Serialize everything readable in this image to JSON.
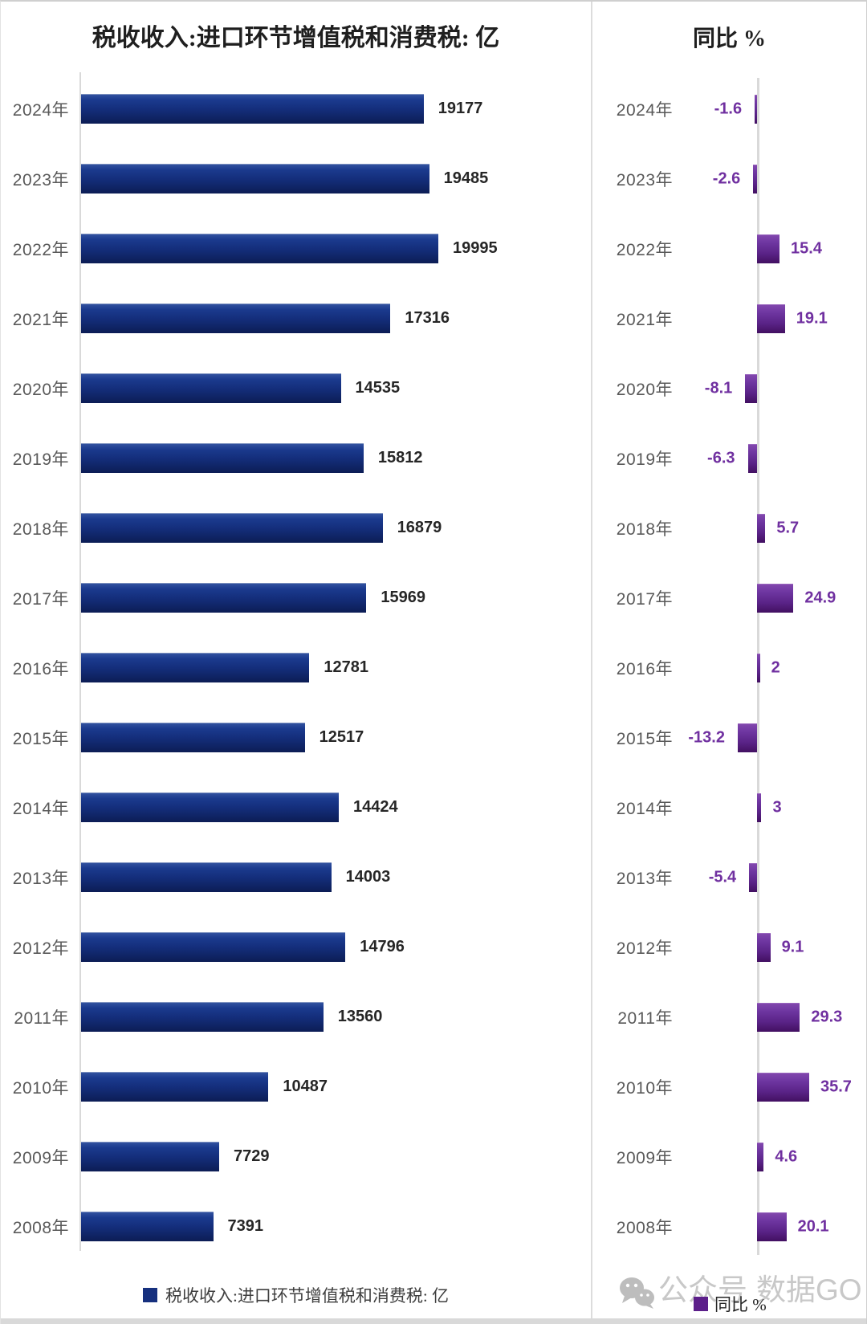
{
  "left_title": "税收收入:进口环节增值税和消费税: 亿",
  "right_title": "同比 %",
  "left_legend": "税收收入:进口环节增值税和消费税: 亿",
  "right_legend": "同比 %",
  "watermark": {
    "icon": "wechat-icon",
    "text_left": "公众号",
    "text_right": "数据GO"
  },
  "colors": {
    "navy_bar_top": "#31519f",
    "navy_bar_bottom": "#0c1d55",
    "purple_bar_top": "#8147ad",
    "purple_bar_bottom": "#421061",
    "left_value_label": "#262626",
    "right_value_label": "#7030a0",
    "year_label": "#595959",
    "axis_line": "#d9d9d9",
    "legend_navy_swatch": "#16307e",
    "legend_purple_swatch": "#5c1f8a",
    "watermark_text": "#c8c8c8"
  },
  "chart_data": [
    {
      "type": "bar",
      "orientation": "horizontal",
      "title": "税收收入:进口环节增值税和消费税: 亿",
      "legend": "税收收入:进口环节增值税和消费税: 亿",
      "categories": [
        "2024年",
        "2023年",
        "2022年",
        "2021年",
        "2020年",
        "2019年",
        "2018年",
        "2017年",
        "2016年",
        "2015年",
        "2014年",
        "2013年",
        "2012年",
        "2011年",
        "2010年",
        "2009年",
        "2008年"
      ],
      "values": [
        19177,
        19485,
        19995,
        17316,
        14535,
        15812,
        16879,
        15969,
        12781,
        12517,
        14424,
        14003,
        14796,
        13560,
        10487,
        7729,
        7391
      ],
      "value_labels": [
        "19177",
        "19485",
        "19995",
        "17316",
        "14535",
        "15812",
        "16879",
        "15969",
        "12781",
        "12517",
        "14424",
        "14003",
        "14796",
        "13560",
        "10487",
        "7729",
        "7391"
      ],
      "xlim": [
        0,
        20000
      ],
      "grid": false,
      "legend_position": "bottom",
      "bar_color": "navy-gradient"
    },
    {
      "type": "bar",
      "orientation": "horizontal",
      "title": "同比 %",
      "legend": "同比 %",
      "categories": [
        "2024年",
        "2023年",
        "2022年",
        "2021年",
        "2020年",
        "2019年",
        "2018年",
        "2017年",
        "2016年",
        "2015年",
        "2014年",
        "2013年",
        "2012年",
        "2011年",
        "2010年",
        "2009年",
        "2008年"
      ],
      "values": [
        -1.6,
        -2.6,
        15.4,
        19.1,
        -8.1,
        -6.3,
        5.7,
        24.9,
        2,
        -13.2,
        3,
        -5.4,
        9.1,
        29.3,
        35.7,
        4.6,
        20.1
      ],
      "value_labels": [
        "-1.6",
        "-2.6",
        "15.4",
        "19.1",
        "-8.1",
        "-6.3",
        "5.7",
        "24.9",
        "2",
        "-13.2",
        "3",
        "-5.4",
        "9.1",
        "29.3",
        "35.7",
        "4.6",
        "20.1"
      ],
      "xlim": [
        -15,
        40
      ],
      "grid": false,
      "legend_position": "bottom",
      "bar_color": "purple-gradient"
    }
  ]
}
